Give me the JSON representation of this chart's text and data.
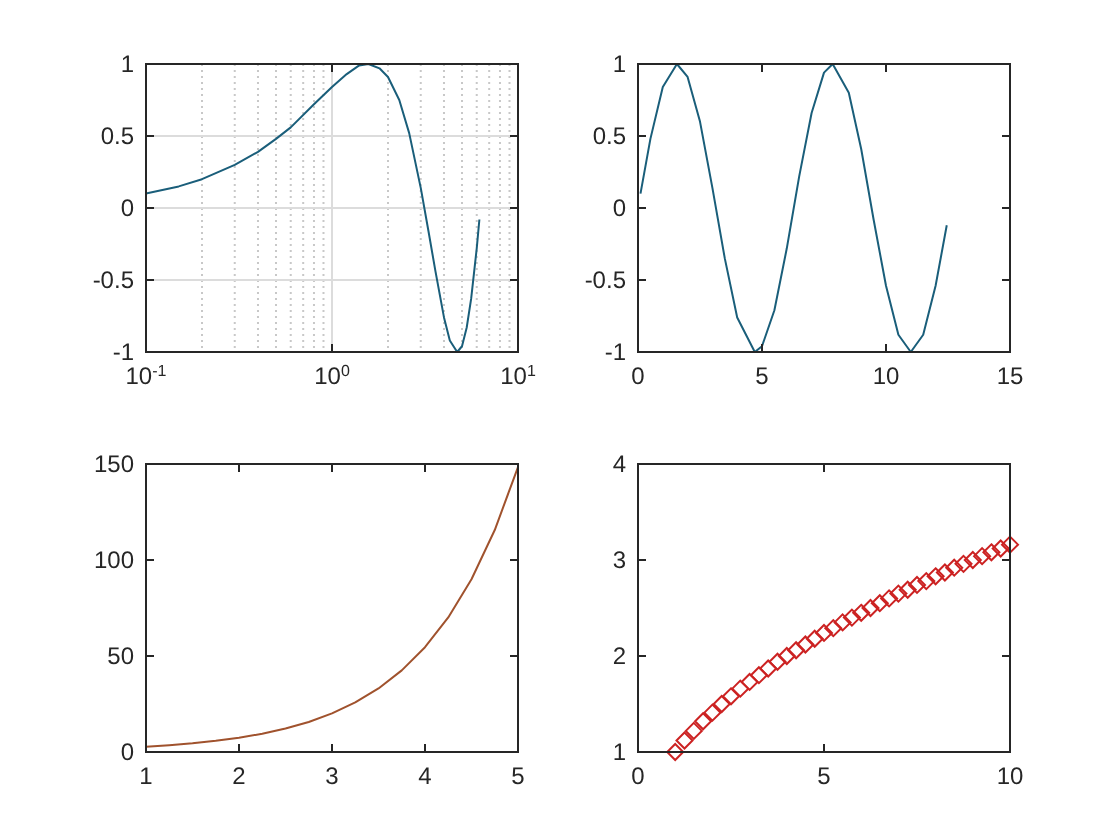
{
  "chart_data": [
    {
      "type": "line",
      "color": "#1a5e7a",
      "log": "x",
      "grid": true,
      "xlim": [
        0.1,
        10
      ],
      "xticks": [
        {
          "value": 0.1,
          "label": "10$^{-1}$"
        },
        {
          "value": 1,
          "label": "10$^{0}$"
        },
        {
          "value": 10,
          "label": "10$^{1}$"
        }
      ],
      "ylim": [
        -1,
        1
      ],
      "yticks": [
        -1,
        -0.5,
        0,
        0.5,
        1
      ],
      "x": [
        0.1,
        0.15,
        0.2,
        0.3,
        0.4,
        0.5,
        0.6,
        0.8,
        1,
        1.2,
        1.4,
        1.57,
        1.8,
        2,
        2.3,
        2.6,
        3,
        3.3,
        3.6,
        4,
        4.3,
        4.71,
        5,
        5.3,
        5.6,
        6,
        6.2
      ],
      "values": [
        0.1,
        0.15,
        0.2,
        0.3,
        0.39,
        0.48,
        0.56,
        0.72,
        0.84,
        0.93,
        0.99,
        1,
        0.97,
        0.91,
        0.75,
        0.52,
        0.14,
        -0.16,
        -0.44,
        -0.76,
        -0.92,
        -1,
        -0.96,
        -0.83,
        -0.63,
        -0.28,
        -0.08
      ]
    },
    {
      "type": "line",
      "color": "#1a5e7a",
      "xlim": [
        0,
        15
      ],
      "xticks": [
        0,
        5,
        10,
        15
      ],
      "ylim": [
        -1,
        1
      ],
      "yticks": [
        -1,
        -0.5,
        0,
        0.5,
        1
      ],
      "x": [
        0.1,
        0.5,
        1,
        1.57,
        2,
        2.5,
        3,
        3.5,
        4,
        4.71,
        5,
        5.5,
        6,
        6.5,
        7,
        7.5,
        7.85,
        8.5,
        9,
        9.5,
        10,
        10.5,
        11,
        11.5,
        12,
        12.45
      ],
      "values": [
        0.1,
        0.48,
        0.84,
        1,
        0.91,
        0.6,
        0.14,
        -0.35,
        -0.76,
        -1,
        -0.96,
        -0.71,
        -0.28,
        0.22,
        0.66,
        0.94,
        1,
        0.8,
        0.41,
        -0.08,
        -0.54,
        -0.88,
        -1,
        -0.88,
        -0.54,
        -0.12
      ]
    },
    {
      "type": "line",
      "color": "#a0522d",
      "xlim": [
        1,
        5
      ],
      "xticks": [
        1,
        2,
        3,
        4,
        5
      ],
      "ylim": [
        0,
        150
      ],
      "yticks": [
        0,
        50,
        100,
        150
      ],
      "x": [
        1,
        1.25,
        1.5,
        1.75,
        2,
        2.25,
        2.5,
        2.75,
        3,
        3.25,
        3.5,
        3.75,
        4,
        4.25,
        4.5,
        4.75,
        5
      ],
      "values": [
        2.7,
        3.5,
        4.5,
        5.8,
        7.4,
        9.5,
        12.2,
        15.6,
        20.1,
        25.8,
        33.1,
        42.5,
        54.6,
        70.1,
        90,
        115.6,
        148.4
      ]
    },
    {
      "type": "scatter",
      "marker": "diamond",
      "color": "#cc2222",
      "xlim": [
        0,
        10
      ],
      "xticks": [
        0,
        5,
        10
      ],
      "ylim": [
        1,
        4
      ],
      "yticks": [
        1,
        2,
        3,
        4
      ],
      "x": [
        1,
        1.25,
        1.5,
        1.75,
        2,
        2.25,
        2.5,
        2.75,
        3,
        3.25,
        3.5,
        3.75,
        4,
        4.25,
        4.5,
        4.75,
        5,
        5.25,
        5.5,
        5.75,
        6,
        6.25,
        6.5,
        6.75,
        7,
        7.25,
        7.5,
        7.75,
        8,
        8.25,
        8.5,
        8.75,
        9,
        9.25,
        9.5,
        9.75,
        10
      ],
      "values": [
        1,
        1.12,
        1.22,
        1.32,
        1.41,
        1.5,
        1.58,
        1.66,
        1.73,
        1.8,
        1.87,
        1.94,
        2,
        2.06,
        2.12,
        2.18,
        2.24,
        2.29,
        2.35,
        2.4,
        2.45,
        2.5,
        2.55,
        2.6,
        2.65,
        2.69,
        2.74,
        2.78,
        2.83,
        2.87,
        2.92,
        2.96,
        3,
        3.04,
        3.08,
        3.12,
        3.16
      ]
    }
  ]
}
